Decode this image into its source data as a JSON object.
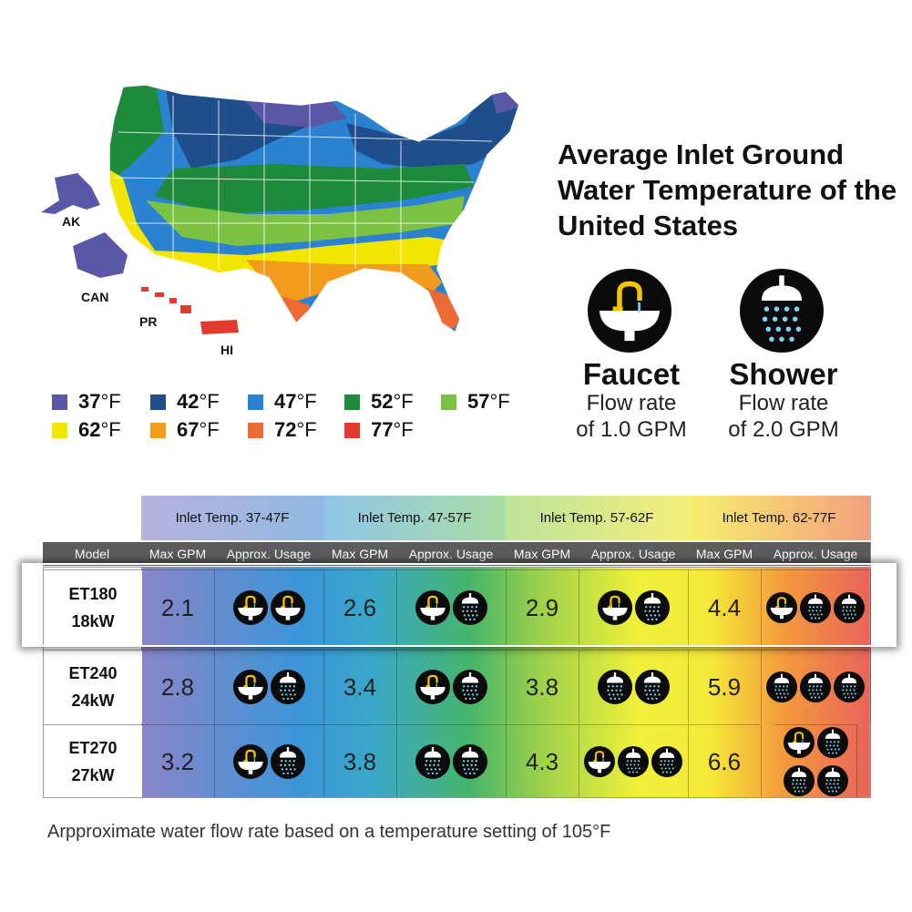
{
  "title": "Average Inlet Ground Water Temperature of the United States",
  "map": {
    "labels": {
      "ak": "AK",
      "can": "CAN",
      "pr": "PR",
      "hi": "HI"
    }
  },
  "legend": [
    {
      "temp": "37",
      "unit": "°F",
      "color": "#5b57a8"
    },
    {
      "temp": "42",
      "unit": "°F",
      "color": "#1f4e8c"
    },
    {
      "temp": "47",
      "unit": "°F",
      "color": "#2a82d0"
    },
    {
      "temp": "52",
      "unit": "°F",
      "color": "#1e8a3c"
    },
    {
      "temp": "57",
      "unit": "°F",
      "color": "#7bc142"
    },
    {
      "temp": "62",
      "unit": "°F",
      "color": "#f2e600"
    },
    {
      "temp": "67",
      "unit": "°F",
      "color": "#f39b1c"
    },
    {
      "temp": "72",
      "unit": "°F",
      "color": "#ec6b34"
    },
    {
      "temp": "77",
      "unit": "°F",
      "color": "#e23b2e"
    }
  ],
  "faucet": {
    "name": "Faucet",
    "line1": "Flow rate",
    "line2": "of 1.0 GPM"
  },
  "shower": {
    "name": "Shower",
    "line1": "Flow rate",
    "line2": "of 2.0 GPM"
  },
  "table": {
    "ranges": [
      "Inlet Temp. 37-47F",
      "Inlet Temp. 47-57F",
      "Inlet Temp. 57-62F",
      "Inlet Temp. 62-77F"
    ],
    "model_header": "Model",
    "sub_headers": [
      "Max GPM",
      "Approx. Usage"
    ],
    "rows": [
      {
        "model": "ET180",
        "power": "18kW",
        "cells": [
          {
            "gpm": "2.1",
            "usage": [
              "faucet",
              "faucet"
            ]
          },
          {
            "gpm": "2.6",
            "usage": [
              "faucet",
              "shower"
            ]
          },
          {
            "gpm": "2.9",
            "usage": [
              "faucet",
              "shower"
            ]
          },
          {
            "gpm": "4.4",
            "usage": [
              "faucet",
              "shower",
              "shower"
            ]
          }
        ]
      },
      {
        "model": "ET240",
        "power": "24kW",
        "cells": [
          {
            "gpm": "2.8",
            "usage": [
              "faucet",
              "shower"
            ]
          },
          {
            "gpm": "3.4",
            "usage": [
              "faucet",
              "shower"
            ]
          },
          {
            "gpm": "3.8",
            "usage": [
              "shower",
              "shower"
            ]
          },
          {
            "gpm": "5.9",
            "usage": [
              "shower",
              "shower",
              "shower"
            ]
          }
        ]
      },
      {
        "model": "ET270",
        "power": "27kW",
        "cells": [
          {
            "gpm": "3.2",
            "usage": [
              "faucet",
              "shower"
            ]
          },
          {
            "gpm": "3.8",
            "usage": [
              "shower",
              "shower"
            ]
          },
          {
            "gpm": "4.3",
            "usage": [
              "faucet",
              "shower",
              "shower"
            ]
          },
          {
            "gpm": "6.6",
            "usage": [
              "faucet",
              "shower",
              "shower",
              "shower"
            ]
          }
        ]
      }
    ]
  },
  "footnote": "Arpproximate water flow rate based on a temperature setting of 105°F"
}
